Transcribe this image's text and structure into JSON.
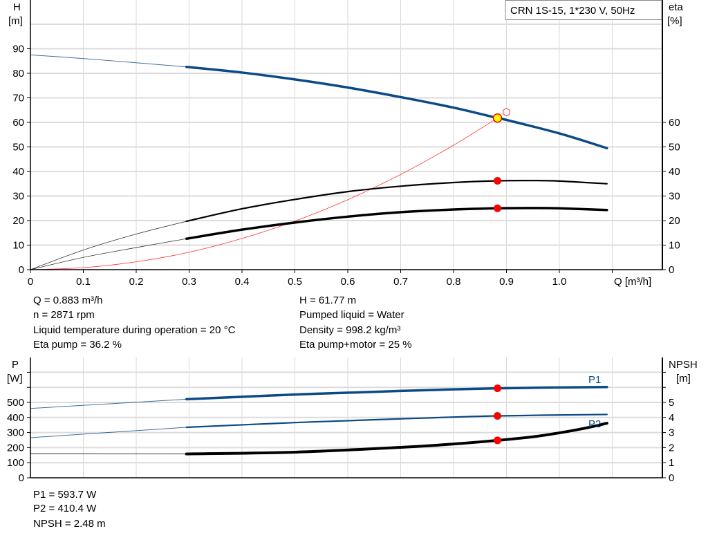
{
  "chart_data": [
    {
      "type": "line",
      "title": "CRN 1S-15, 1*230 V, 50Hz",
      "xlabel": "Q [m³/h]",
      "ylabel": [
        "H",
        "[m]"
      ],
      "y2label": [
        "eta",
        "[%]"
      ],
      "xlim": [
        0,
        1.19
      ],
      "ylim": [
        0,
        100
      ],
      "x_ticks": [
        "0",
        "0.1",
        "0.2",
        "0.3",
        "0.4",
        "0.5",
        "0.6",
        "0.7",
        "0.8",
        "0.9",
        "1.0"
      ],
      "y_ticks": [
        0,
        10,
        20,
        30,
        40,
        50,
        60,
        70,
        80,
        90
      ],
      "y2_ticks": [
        0,
        10,
        20,
        30,
        40,
        50,
        60
      ],
      "grid": true,
      "colors": {
        "head": "#0b4a84",
        "eta": "#000000",
        "system": "#ff3030",
        "point": "#ff0000",
        "duty": "#ffff00"
      },
      "series": [
        {
          "key": "head",
          "x": [
            0,
            0.1,
            0.2,
            0.295,
            0.4,
            0.5,
            0.6,
            0.7,
            0.8,
            0.883,
            0.9,
            1.0,
            1.09
          ],
          "y": [
            87.5,
            86,
            84.3,
            82.6,
            80.3,
            77.5,
            74.2,
            70.3,
            66,
            61.77,
            61,
            55.5,
            49.5
          ],
          "thick_from": 0.295
        },
        {
          "key": "eta_pump",
          "x": [
            0,
            0.1,
            0.2,
            0.295,
            0.4,
            0.5,
            0.6,
            0.7,
            0.8,
            0.883,
            0.95,
            1.0,
            1.09
          ],
          "y": [
            0,
            8,
            14.5,
            19.7,
            24.8,
            28.6,
            31.8,
            34,
            35.5,
            36.2,
            36.3,
            36.1,
            35
          ],
          "thick_from": 0.295
        },
        {
          "key": "eta_pump_motor",
          "x": [
            0,
            0.1,
            0.2,
            0.295,
            0.4,
            0.5,
            0.6,
            0.7,
            0.8,
            0.883,
            0.95,
            1.0,
            1.09
          ],
          "y": [
            0,
            5,
            9,
            12.6,
            16.3,
            19.2,
            21.6,
            23.4,
            24.5,
            25,
            25.1,
            25,
            24.3
          ],
          "thick_from": 0.295
        },
        {
          "key": "system",
          "x": [
            0,
            0.1,
            0.2,
            0.3,
            0.4,
            0.5,
            0.6,
            0.7,
            0.8,
            0.883
          ],
          "y": [
            0,
            0.8,
            3.2,
            7.1,
            12.7,
            19.8,
            28.5,
            38.8,
            50.7,
            61.77
          ]
        }
      ],
      "duty_point": {
        "x": 0.883,
        "y": 61.77
      },
      "requested_point": {
        "x": 0.9,
        "y": 64.2
      },
      "eta_points": [
        {
          "x": 0.883,
          "y": 36.2
        },
        {
          "x": 0.883,
          "y": 25
        }
      ]
    },
    {
      "type": "line",
      "ylabel": [
        "P",
        "[W]"
      ],
      "y2label": [
        "NPSH",
        "[m]"
      ],
      "xlim": [
        0,
        1.19
      ],
      "ylim": [
        0,
        800
      ],
      "y_ticks": [
        0,
        100,
        200,
        300,
        400,
        500
      ],
      "y_minor_ticks": [
        600,
        700
      ],
      "y2_ticks": [
        0,
        1,
        2,
        3,
        4,
        5
      ],
      "y2_minor_ticks": [
        6,
        7
      ],
      "grid": true,
      "series": [
        {
          "key": "P1",
          "name": "P1",
          "axis": "P",
          "x": [
            0,
            0.295,
            0.5,
            0.7,
            0.883,
            1.09
          ],
          "y": [
            460,
            521,
            552,
            576,
            593.7,
            602
          ],
          "thick_from": 0.295
        },
        {
          "key": "P2",
          "name": "P2",
          "axis": "P",
          "x": [
            0,
            0.295,
            0.5,
            0.7,
            0.883,
            1.09
          ],
          "y": [
            266,
            335,
            366,
            391,
            410.4,
            420
          ],
          "thick_from": 0.295
        },
        {
          "key": "NPSH",
          "axis": "NPSH",
          "x": [
            0,
            0.295,
            0.5,
            0.7,
            0.8,
            0.883,
            0.95,
            1.0,
            1.05,
            1.09
          ],
          "y": [
            1.6,
            1.58,
            1.7,
            2.02,
            2.24,
            2.48,
            2.72,
            2.98,
            3.3,
            3.62
          ],
          "thick_from": 0.295
        }
      ],
      "points": [
        {
          "axis": "P",
          "x": 0.883,
          "y": 593.7
        },
        {
          "axis": "P",
          "x": 0.883,
          "y": 410.4
        },
        {
          "axis": "NPSH",
          "x": 0.883,
          "y": 2.48
        }
      ]
    }
  ],
  "info_top": {
    "left": [
      "Q = 0.883 m³/h",
      "n = 2871 rpm",
      "Liquid temperature during operation = 20 °C",
      "Eta pump = 36.2 %"
    ],
    "right": [
      "H = 61.77 m",
      "Pumped liquid = Water",
      "Density = 998.2 kg/m³",
      "Eta pump+motor = 25 %"
    ]
  },
  "info_bottom": [
    "P1 = 593.7 W",
    "P2 = 410.4 W",
    "NPSH = 2.48 m"
  ]
}
